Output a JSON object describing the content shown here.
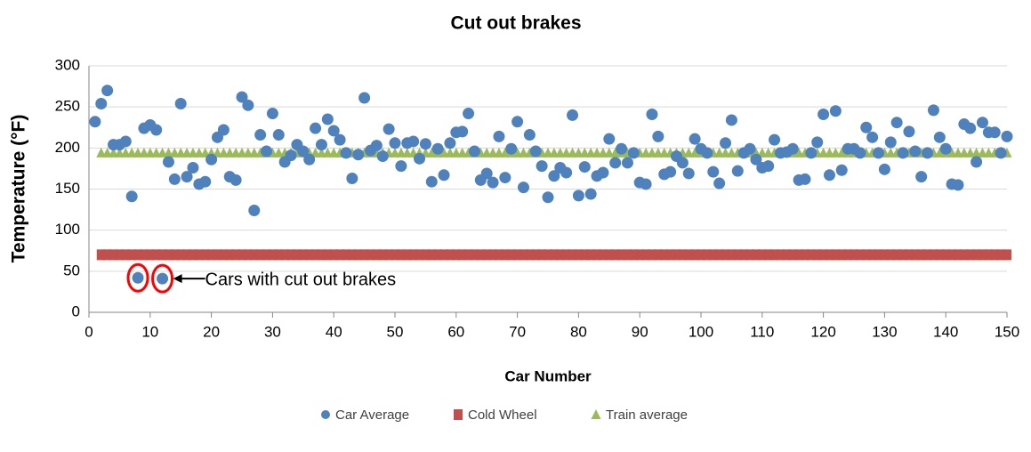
{
  "chart_data": {
    "type": "scatter",
    "title": "Cut out brakes",
    "xlabel": "Car Number",
    "ylabel": "Temperature (°F)",
    "xlim": [
      0,
      150
    ],
    "ylim": [
      0,
      300
    ],
    "xticks": [
      0,
      10,
      20,
      30,
      40,
      50,
      60,
      70,
      80,
      90,
      100,
      110,
      120,
      130,
      140,
      150
    ],
    "yticks": [
      0,
      50,
      100,
      150,
      200,
      250,
      300
    ],
    "grid": true,
    "legend": "bottom",
    "annotation": "Cars with cut out brakes",
    "annotated_points": [
      7,
      11
    ],
    "x": [
      1,
      2,
      3,
      4,
      5,
      6,
      7,
      8,
      9,
      10,
      11,
      12,
      13,
      14,
      15,
      16,
      17,
      18,
      19,
      20,
      21,
      22,
      23,
      24,
      25,
      26,
      27,
      28,
      29,
      30,
      31,
      32,
      33,
      34,
      35,
      36,
      37,
      38,
      39,
      40,
      41,
      42,
      43,
      44,
      45,
      46,
      47,
      48,
      49,
      50,
      51,
      52,
      53,
      54,
      55,
      56,
      57,
      58,
      59,
      60,
      61,
      62,
      63,
      64,
      65,
      66,
      67,
      68,
      69,
      70,
      71,
      72,
      73,
      74,
      75,
      76,
      77,
      78,
      79,
      80,
      81,
      82,
      83,
      84,
      85,
      86,
      87,
      88,
      89,
      90,
      91,
      92,
      93,
      94,
      95,
      96,
      97,
      98,
      99,
      100,
      101,
      102,
      103,
      104,
      105,
      106,
      107,
      108,
      109,
      110,
      111,
      112,
      113,
      114,
      115,
      116,
      117,
      118,
      119,
      120,
      121,
      122,
      123,
      124,
      125,
      126,
      127,
      128,
      129,
      130,
      131,
      132,
      133,
      134,
      135,
      136,
      137,
      138,
      139,
      140,
      141,
      142,
      143,
      144,
      145,
      146,
      147,
      148,
      149,
      150
    ],
    "series": [
      {
        "name": "Car Average",
        "color": "#4f81bd",
        "marker": "circle",
        "values": [
          232,
          254,
          270,
          204,
          204,
          208,
          141,
          42,
          224,
          228,
          222,
          41,
          183,
          162,
          254,
          165,
          176,
          156,
          159,
          186,
          213,
          222,
          165,
          161,
          262,
          252,
          124,
          216,
          196,
          242,
          216,
          183,
          191,
          204,
          196,
          186,
          224,
          204,
          235,
          221,
          210,
          194,
          163,
          192,
          261,
          197,
          203,
          190,
          223,
          206,
          178,
          206,
          208,
          187,
          205,
          159,
          199,
          167,
          206,
          219,
          220,
          242,
          196,
          161,
          169,
          158,
          214,
          164,
          199,
          232,
          152,
          216,
          196,
          178,
          140,
          166,
          176,
          170,
          240,
          142,
          177,
          144,
          166,
          170,
          211,
          182,
          199,
          182,
          194,
          158,
          156,
          241,
          214,
          168,
          171,
          190,
          182,
          169,
          211,
          199,
          194,
          171,
          157,
          206,
          234,
          172,
          194,
          199,
          186,
          176,
          178,
          210,
          194,
          195,
          199,
          161,
          162,
          194,
          207,
          241,
          167,
          245,
          173,
          199,
          199,
          194,
          225,
          213,
          194,
          174,
          207,
          231,
          194,
          220,
          196,
          165,
          194,
          246,
          213,
          199,
          156,
          155,
          229,
          224,
          183,
          231,
          219,
          219,
          194,
          214
        ]
      },
      {
        "name": "Cold Wheel",
        "color": "#c0504d",
        "marker": "square",
        "values": [
          null,
          70,
          70,
          70,
          70,
          70,
          70,
          70,
          70,
          70,
          70,
          70,
          70,
          70,
          70,
          70,
          70,
          70,
          70,
          70,
          70,
          70,
          70,
          70,
          70,
          70,
          70,
          70,
          70,
          70,
          70,
          70,
          70,
          70,
          70,
          70,
          70,
          70,
          70,
          70,
          70,
          70,
          70,
          70,
          70,
          70,
          70,
          70,
          70,
          70,
          70,
          70,
          70,
          70,
          70,
          70,
          70,
          70,
          70,
          70,
          70,
          70,
          70,
          70,
          70,
          70,
          70,
          70,
          70,
          70,
          70,
          70,
          70,
          70,
          70,
          70,
          70,
          70,
          70,
          70,
          70,
          70,
          70,
          70,
          70,
          70,
          70,
          70,
          70,
          70,
          70,
          70,
          70,
          70,
          70,
          70,
          70,
          70,
          70,
          70,
          70,
          70,
          70,
          70,
          70,
          70,
          70,
          70,
          70,
          70,
          70,
          70,
          70,
          70,
          70,
          70,
          70,
          70,
          70,
          70,
          70,
          70,
          70,
          70,
          70,
          70,
          70,
          70,
          70,
          70,
          70,
          70,
          70,
          70,
          70,
          70,
          70,
          70,
          70,
          70,
          70,
          70,
          70,
          70,
          70,
          70,
          70,
          70,
          70,
          70
        ]
      },
      {
        "name": "Train average",
        "color": "#9bbb59",
        "marker": "triangle",
        "values": [
          null,
          194,
          194,
          194,
          194,
          194,
          194,
          194,
          194,
          194,
          194,
          194,
          194,
          194,
          194,
          194,
          194,
          194,
          194,
          194,
          194,
          194,
          194,
          194,
          194,
          194,
          194,
          194,
          194,
          194,
          194,
          194,
          194,
          194,
          194,
          194,
          194,
          194,
          194,
          194,
          194,
          194,
          194,
          194,
          194,
          194,
          194,
          194,
          194,
          194,
          194,
          194,
          194,
          194,
          194,
          194,
          194,
          194,
          194,
          194,
          194,
          194,
          194,
          194,
          194,
          194,
          194,
          194,
          194,
          194,
          194,
          194,
          194,
          194,
          194,
          194,
          194,
          194,
          194,
          194,
          194,
          194,
          194,
          194,
          194,
          194,
          194,
          194,
          194,
          194,
          194,
          194,
          194,
          194,
          194,
          194,
          194,
          194,
          194,
          194,
          194,
          194,
          194,
          194,
          194,
          194,
          194,
          194,
          194,
          194,
          194,
          194,
          194,
          194,
          194,
          194,
          194,
          194,
          194,
          194,
          194,
          194,
          194,
          194,
          194,
          194,
          194,
          194,
          194,
          194,
          194,
          194,
          194,
          194,
          194,
          194,
          194,
          194,
          194,
          194,
          194,
          194,
          194,
          194,
          194,
          194,
          194,
          194,
          194,
          194
        ]
      }
    ]
  }
}
